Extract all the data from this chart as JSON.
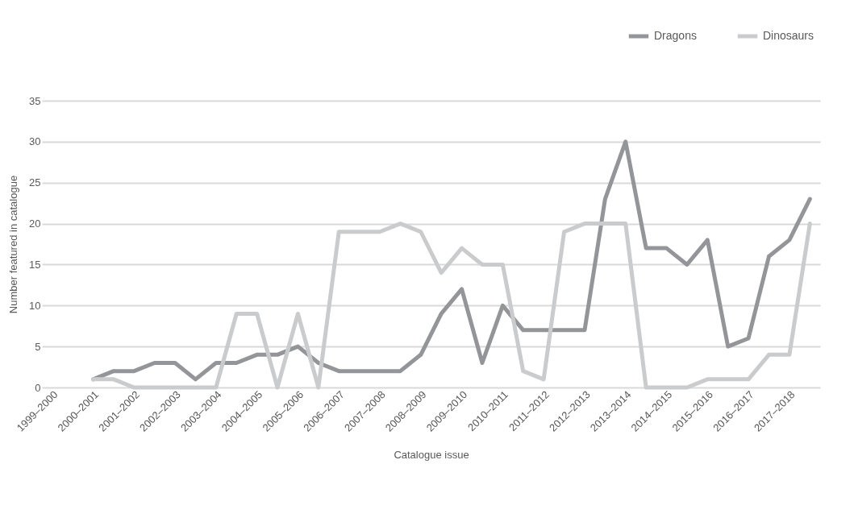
{
  "chart_data": {
    "type": "line",
    "xlabel": "Catalogue issue",
    "ylabel": "Number featured in catalogue",
    "categories": [
      "1999–2000",
      null,
      "2000–2001",
      null,
      "2001–2002",
      null,
      "2002–2003",
      null,
      "2003–2004",
      null,
      "2004–2005",
      null,
      "2005–2006",
      null,
      "2006–2007",
      null,
      "2007–2008",
      null,
      "2008–2009",
      null,
      "2009–2010",
      null,
      "2010–2011",
      null,
      "2011–2012",
      null,
      "2012–2013",
      null,
      "2013–2014",
      null,
      "2014–2015",
      null,
      "2015–2016",
      null,
      "2016–2017",
      null,
      "2017–2018",
      null
    ],
    "series": [
      {
        "name": "Dragons",
        "color": "#939598",
        "values": [
          null,
          null,
          1,
          2,
          2,
          3,
          3,
          1,
          3,
          3,
          4,
          4,
          5,
          3,
          2,
          2,
          2,
          2,
          4,
          9,
          12,
          3,
          10,
          7,
          7,
          7,
          7,
          23,
          30,
          17,
          17,
          15,
          18,
          5,
          6,
          16,
          18,
          23
        ]
      },
      {
        "name": "Dinosaurs",
        "color": "#cacbcd",
        "values": [
          null,
          null,
          1,
          1,
          0,
          0,
          0,
          0,
          0,
          9,
          9,
          0,
          9,
          0,
          19,
          19,
          19,
          20,
          19,
          14,
          17,
          15,
          15,
          2,
          1,
          19,
          20,
          20,
          20,
          0,
          0,
          0,
          1,
          1,
          1,
          4,
          4,
          20
        ]
      }
    ],
    "ylim": [
      0,
      35
    ],
    "yticks": [
      0,
      5,
      10,
      15,
      20,
      25,
      30,
      35
    ],
    "grid": "y",
    "legend": "top right",
    "marker": "none",
    "line_style": "solid"
  }
}
